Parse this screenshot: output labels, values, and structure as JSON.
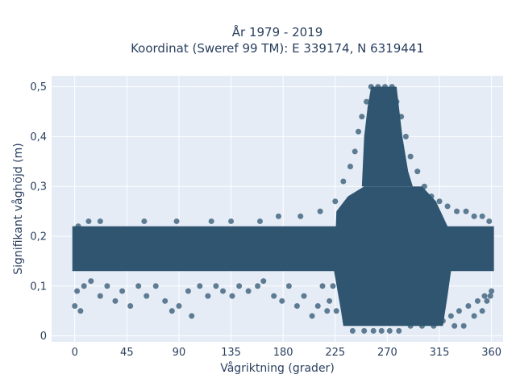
{
  "chart_data": {
    "type": "scatter",
    "title_line1": "År 1979 - 2019",
    "title_line2": "Koordinat (Sweref 99 TM): E 339174, N 6319441",
    "xlabel": "Vågriktning (grader)",
    "ylabel": "Signifikant våghöjd (m)",
    "xlim": [
      -20,
      370
    ],
    "ylim": [
      -0.012,
      0.522
    ],
    "xticks": [
      0,
      45,
      90,
      135,
      180,
      225,
      270,
      315,
      360
    ],
    "xtick_labels": [
      "0",
      "45",
      "90",
      "135",
      "180",
      "225",
      "270",
      "315",
      "360"
    ],
    "yticks": [
      0,
      0.1,
      0.2,
      0.3,
      0.4,
      0.5
    ],
    "ytick_labels": [
      "0",
      "0,1",
      "0,2",
      "0,3",
      "0,4",
      "0,5"
    ],
    "grid": true,
    "marker_color": "#2f5570",
    "background_color": "#e5ecf6",
    "dense_regions": [
      {
        "x": [
          0,
          360
        ],
        "y": [
          0.13,
          0.22
        ]
      },
      {
        "x": [
          225,
          320
        ],
        "y": [
          0.02,
          0.3
        ]
      },
      {
        "x": [
          250,
          285
        ],
        "y": [
          0.3,
          0.5
        ]
      }
    ],
    "points": [
      {
        "x": 0,
        "y": 0.06
      },
      {
        "x": 5,
        "y": 0.05
      },
      {
        "x": 2,
        "y": 0.09
      },
      {
        "x": 8,
        "y": 0.1
      },
      {
        "x": 14,
        "y": 0.11
      },
      {
        "x": 22,
        "y": 0.08
      },
      {
        "x": 28,
        "y": 0.1
      },
      {
        "x": 35,
        "y": 0.07
      },
      {
        "x": 41,
        "y": 0.09
      },
      {
        "x": 48,
        "y": 0.06
      },
      {
        "x": 55,
        "y": 0.1
      },
      {
        "x": 62,
        "y": 0.08
      },
      {
        "x": 70,
        "y": 0.1
      },
      {
        "x": 78,
        "y": 0.07
      },
      {
        "x": 84,
        "y": 0.05
      },
      {
        "x": 90,
        "y": 0.06
      },
      {
        "x": 98,
        "y": 0.09
      },
      {
        "x": 101,
        "y": 0.04
      },
      {
        "x": 108,
        "y": 0.1
      },
      {
        "x": 115,
        "y": 0.08
      },
      {
        "x": 122,
        "y": 0.1
      },
      {
        "x": 128,
        "y": 0.09
      },
      {
        "x": 136,
        "y": 0.08
      },
      {
        "x": 142,
        "y": 0.1
      },
      {
        "x": 150,
        "y": 0.09
      },
      {
        "x": 158,
        "y": 0.1
      },
      {
        "x": 163,
        "y": 0.11
      },
      {
        "x": 172,
        "y": 0.08
      },
      {
        "x": 179,
        "y": 0.07
      },
      {
        "x": 185,
        "y": 0.1
      },
      {
        "x": 192,
        "y": 0.06
      },
      {
        "x": 198,
        "y": 0.08
      },
      {
        "x": 205,
        "y": 0.04
      },
      {
        "x": 210,
        "y": 0.06
      },
      {
        "x": 214,
        "y": 0.1
      },
      {
        "x": 218,
        "y": 0.05
      },
      {
        "x": 220,
        "y": 0.07
      },
      {
        "x": 223,
        "y": 0.1
      },
      {
        "x": 226,
        "y": 0.05
      },
      {
        "x": 3,
        "y": 0.22
      },
      {
        "x": 12,
        "y": 0.23
      },
      {
        "x": 22,
        "y": 0.23
      },
      {
        "x": 60,
        "y": 0.23
      },
      {
        "x": 88,
        "y": 0.23
      },
      {
        "x": 118,
        "y": 0.23
      },
      {
        "x": 135,
        "y": 0.23
      },
      {
        "x": 160,
        "y": 0.23
      },
      {
        "x": 176,
        "y": 0.24
      },
      {
        "x": 195,
        "y": 0.24
      },
      {
        "x": 212,
        "y": 0.25
      },
      {
        "x": 225,
        "y": 0.27
      },
      {
        "x": 232,
        "y": 0.31
      },
      {
        "x": 238,
        "y": 0.34
      },
      {
        "x": 242,
        "y": 0.37
      },
      {
        "x": 245,
        "y": 0.41
      },
      {
        "x": 248,
        "y": 0.44
      },
      {
        "x": 252,
        "y": 0.47
      },
      {
        "x": 256,
        "y": 0.5
      },
      {
        "x": 262,
        "y": 0.5
      },
      {
        "x": 268,
        "y": 0.5
      },
      {
        "x": 274,
        "y": 0.5
      },
      {
        "x": 278,
        "y": 0.47
      },
      {
        "x": 282,
        "y": 0.44
      },
      {
        "x": 286,
        "y": 0.4
      },
      {
        "x": 290,
        "y": 0.36
      },
      {
        "x": 296,
        "y": 0.33
      },
      {
        "x": 302,
        "y": 0.3
      },
      {
        "x": 308,
        "y": 0.28
      },
      {
        "x": 315,
        "y": 0.27
      },
      {
        "x": 322,
        "y": 0.26
      },
      {
        "x": 330,
        "y": 0.25
      },
      {
        "x": 338,
        "y": 0.25
      },
      {
        "x": 345,
        "y": 0.24
      },
      {
        "x": 352,
        "y": 0.24
      },
      {
        "x": 358,
        "y": 0.23
      },
      {
        "x": 240,
        "y": 0.01
      },
      {
        "x": 250,
        "y": 0.01
      },
      {
        "x": 258,
        "y": 0.01
      },
      {
        "x": 265,
        "y": 0.01
      },
      {
        "x": 272,
        "y": 0.01
      },
      {
        "x": 280,
        "y": 0.01
      },
      {
        "x": 290,
        "y": 0.02
      },
      {
        "x": 300,
        "y": 0.02
      },
      {
        "x": 310,
        "y": 0.02
      },
      {
        "x": 318,
        "y": 0.03
      },
      {
        "x": 325,
        "y": 0.04
      },
      {
        "x": 332,
        "y": 0.05
      },
      {
        "x": 340,
        "y": 0.06
      },
      {
        "x": 348,
        "y": 0.07
      },
      {
        "x": 354,
        "y": 0.08
      },
      {
        "x": 359,
        "y": 0.08
      },
      {
        "x": 328,
        "y": 0.02
      },
      {
        "x": 336,
        "y": 0.02
      },
      {
        "x": 345,
        "y": 0.04
      },
      {
        "x": 352,
        "y": 0.05
      },
      {
        "x": 356,
        "y": 0.07
      },
      {
        "x": 360,
        "y": 0.09
      }
    ]
  }
}
